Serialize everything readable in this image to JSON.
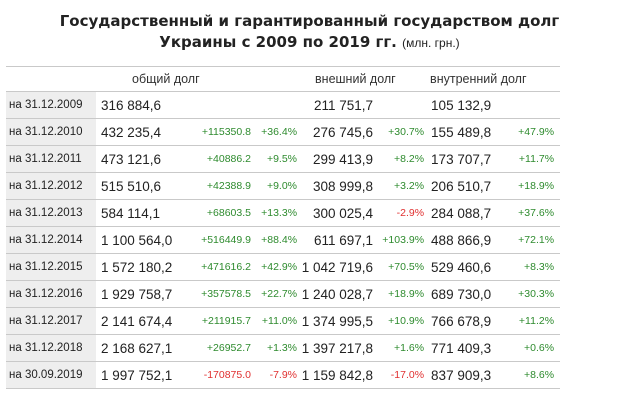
{
  "title": {
    "line1": "Государственный и гарантированный государством долг",
    "line2": "Украины с 2009 по 2019 гг.",
    "unit": "(млн. грн.)"
  },
  "headers": {
    "total": "общий долг",
    "external": "внешний долг",
    "internal": "внутренний долг"
  },
  "colors": {
    "positive": "#2e8b2e",
    "negative": "#e03030",
    "date_bg": "#eeeeee",
    "border": "#c9c9c9"
  },
  "rows": [
    {
      "date": "на 31.12.2009",
      "total": "316 884,6",
      "total_change": "",
      "total_pct": "",
      "external": "211 751,7",
      "external_pct": "",
      "internal": "105 132,9",
      "internal_pct": ""
    },
    {
      "date": "на 31.12.2010",
      "total": "432 235,4",
      "total_change": "+115350.8",
      "total_pct": "+36.4%",
      "external": "276 745,6",
      "external_pct": "+30.7%",
      "internal": "155 489,8",
      "internal_pct": "+47.9%"
    },
    {
      "date": "на 31.12.2011",
      "total": "473 121,6",
      "total_change": "+40886.2",
      "total_pct": "+9.5%",
      "external": "299 413,9",
      "external_pct": "+8.2%",
      "internal": "173 707,7",
      "internal_pct": "+11.7%"
    },
    {
      "date": "на 31.12.2012",
      "total": "515 510,6",
      "total_change": "+42388.9",
      "total_pct": "+9.0%",
      "external": "308 999,8",
      "external_pct": "+3.2%",
      "internal": "206 510,7",
      "internal_pct": "+18.9%"
    },
    {
      "date": "на 31.12.2013",
      "total": "584 114,1",
      "total_change": "+68603.5",
      "total_pct": "+13.3%",
      "external": "300 025,4",
      "external_pct": "-2.9%",
      "internal": "284 088,7",
      "internal_pct": "+37.6%"
    },
    {
      "date": "на 31.12.2014",
      "total": "1 100 564,0",
      "total_change": "+516449.9",
      "total_pct": "+88.4%",
      "external": "611 697,1",
      "external_pct": "+103.9%",
      "internal": "488 866,9",
      "internal_pct": "+72.1%"
    },
    {
      "date": "на 31.12.2015",
      "total": "1 572 180,2",
      "total_change": "+471616.2",
      "total_pct": "+42.9%",
      "external": "1 042 719,6",
      "external_pct": "+70.5%",
      "internal": "529 460,6",
      "internal_pct": "+8.3%"
    },
    {
      "date": "на 31.12.2016",
      "total": "1 929 758,7",
      "total_change": "+357578.5",
      "total_pct": "+22.7%",
      "external": "1 240 028,7",
      "external_pct": "+18.9%",
      "internal": "689 730,0",
      "internal_pct": "+30.3%"
    },
    {
      "date": "на 31.12.2017",
      "total": "2 141 674,4",
      "total_change": "+211915.7",
      "total_pct": "+11.0%",
      "external": "1 374 995,5",
      "external_pct": "+10.9%",
      "internal": "766 678,9",
      "internal_pct": "+11.2%"
    },
    {
      "date": "на 31.12.2018",
      "total": "2 168 627,1",
      "total_change": "+26952.7",
      "total_pct": "+1.3%",
      "external": "1 397 217,8",
      "external_pct": "+1.6%",
      "internal": "771 409,3",
      "internal_pct": "+0.6%"
    },
    {
      "date": "на 30.09.2019",
      "total": "1 997 752,1",
      "total_change": "-170875.0",
      "total_pct": "-7.9%",
      "external": "1 159 842,8",
      "external_pct": "-17.0%",
      "internal": "837 909,3",
      "internal_pct": "+8.6%"
    }
  ]
}
